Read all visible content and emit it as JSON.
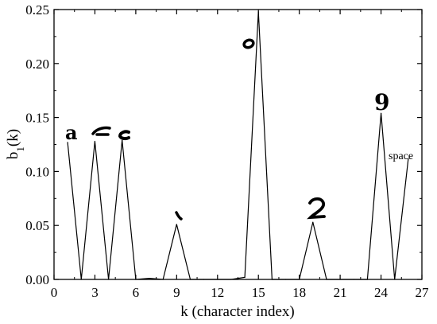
{
  "chart_data": {
    "type": "line",
    "title": "",
    "xlabel": "k (character index)",
    "ylabel_main": "b",
    "ylabel_sub": "1",
    "ylabel_tail": "(k)",
    "xlim": [
      0,
      27
    ],
    "ylim": [
      0,
      0.25
    ],
    "x_ticks": [
      "0",
      "3",
      "6",
      "9",
      "12",
      "15",
      "18",
      "21",
      "24",
      "27"
    ],
    "y_ticks": [
      "0.00",
      "0.05",
      "0.10",
      "0.15",
      "0.20",
      "0.25"
    ],
    "grid": false,
    "legend": "none",
    "series": [
      {
        "x": [
          1,
          2,
          3,
          4,
          5,
          6,
          7,
          8,
          9,
          10,
          11,
          12,
          13,
          14,
          15,
          16,
          17,
          18,
          19,
          20,
          21,
          22,
          23,
          24,
          25,
          26
        ],
        "y": [
          0.127,
          0.0,
          0.128,
          0.0,
          0.129,
          0.0,
          0.001,
          0.0,
          0.051,
          0.0,
          0.0,
          0.0,
          0.0,
          0.002,
          0.248,
          0.0,
          0.0,
          0.0,
          0.053,
          0.0,
          0.0,
          0.0,
          0.0,
          0.154,
          0.0,
          0.112
        ]
      }
    ],
    "annotations": [
      {
        "text": "space",
        "x": 26
      }
    ]
  }
}
